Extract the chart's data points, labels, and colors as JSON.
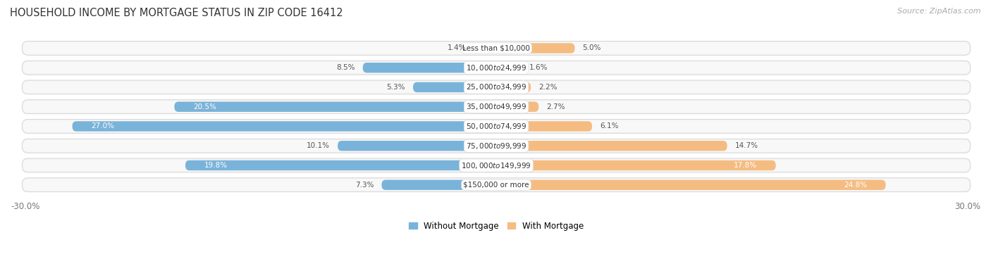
{
  "title": "HOUSEHOLD INCOME BY MORTGAGE STATUS IN ZIP CODE 16412",
  "source": "Source: ZipAtlas.com",
  "categories": [
    "Less than $10,000",
    "$10,000 to $24,999",
    "$25,000 to $34,999",
    "$35,000 to $49,999",
    "$50,000 to $74,999",
    "$75,000 to $99,999",
    "$100,000 to $149,999",
    "$150,000 or more"
  ],
  "without_mortgage": [
    1.4,
    8.5,
    5.3,
    20.5,
    27.0,
    10.1,
    19.8,
    7.3
  ],
  "with_mortgage": [
    5.0,
    1.6,
    2.2,
    2.7,
    6.1,
    14.7,
    17.8,
    24.8
  ],
  "color_without": "#7ab3d9",
  "color_with": "#f5bc82",
  "axis_max": 30.0,
  "row_bg_color": "#eeeeee",
  "row_bg_inner": "#f7f7f7",
  "legend_without": "Without Mortgage",
  "legend_with": "With Mortgage"
}
